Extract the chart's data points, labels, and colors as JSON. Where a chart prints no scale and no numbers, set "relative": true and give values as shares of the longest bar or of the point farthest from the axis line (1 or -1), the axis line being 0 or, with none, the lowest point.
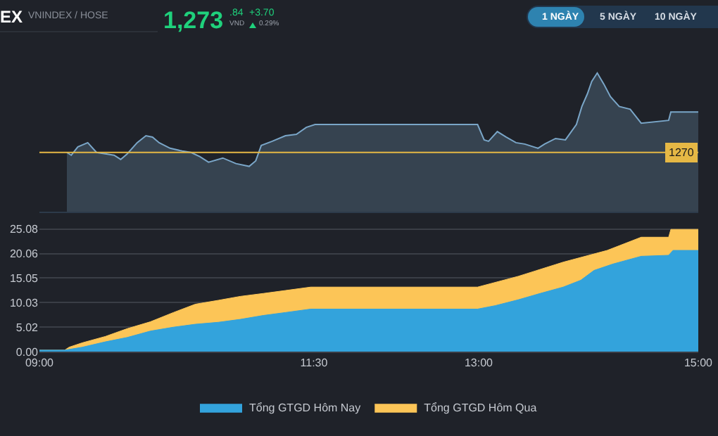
{
  "chart_data": [
    {
      "type": "other",
      "annotations": [
        "EX",
        "VNINDEX / HOSE",
        "1,273",
        ".84",
        "VND",
        "+3.70",
        "0.29%",
        "1 NGÀY",
        "5 NGÀY",
        "10 NGÀY"
      ]
    },
    {
      "type": "area",
      "relative": true,
      "xlim": [
        9,
        15
      ],
      "tick_labels": false,
      "series": [
        {
          "color": "#7aa6c8",
          "x": [
            9.25,
            9.29,
            9.35,
            9.44,
            9.52,
            9.6,
            9.68,
            9.74,
            9.8,
            9.89,
            9.97,
            10.03,
            10.09,
            10.19,
            10.3,
            10.38,
            10.46,
            10.54,
            10.67,
            10.79,
            10.91,
            10.97,
            11.02,
            11.12,
            11.24,
            11.34,
            11.43,
            11.51,
            12.99,
            13.05,
            13.09,
            13.17,
            13.25,
            13.34,
            13.42,
            13.54,
            13.6,
            13.7,
            13.79,
            13.89,
            13.94,
            13.99,
            14.03,
            14.08,
            14.14,
            14.2,
            14.28,
            14.38,
            14.48,
            14.73,
            14.75,
            15
          ],
          "values": [
            0.43,
            0.41,
            0.47,
            0.5,
            0.43,
            0.42,
            0.41,
            0.38,
            0.42,
            0.5,
            0.55,
            0.54,
            0.5,
            0.46,
            0.44,
            0.43,
            0.4,
            0.36,
            0.39,
            0.35,
            0.33,
            0.37,
            0.48,
            0.51,
            0.55,
            0.56,
            0.61,
            0.63,
            0.63,
            0.52,
            0.51,
            0.58,
            0.54,
            0.5,
            0.49,
            0.46,
            0.49,
            0.53,
            0.52,
            0.63,
            0.76,
            0.85,
            0.94,
            1,
            0.92,
            0.83,
            0.76,
            0.74,
            0.64,
            0.66,
            0.72,
            0.72
          ]
        }
      ],
      "ref_lines": [
        {
          "axis": "y",
          "value": 0.43,
          "color": "#e6b845"
        }
      ],
      "annotations": [
        "1270"
      ]
    },
    {
      "type": "area",
      "xlim": [
        9,
        15
      ],
      "xticks": [
        {
          "value": 9,
          "label": "09:00"
        },
        {
          "value": 11.5,
          "label": "11:30"
        },
        {
          "value": 13,
          "label": "13:00"
        },
        {
          "value": 15,
          "label": "15:00"
        }
      ],
      "ylim": [
        0,
        25.6
      ],
      "yticks": [
        {
          "value": 0,
          "label": "0.00"
        },
        5.02,
        10.03,
        15.05,
        20.06,
        25.08
      ],
      "grid": "y",
      "legend": "bottom",
      "series": [
        {
          "name": "Tổng GTGD Hôm Nay",
          "color": "#33a3dc",
          "x": [
            9,
            9.23,
            9.39,
            9.6,
            9.8,
            10.01,
            10.22,
            10.42,
            10.63,
            10.83,
            11.04,
            11.24,
            11.47,
            12.99,
            13.15,
            13.36,
            13.56,
            13.77,
            13.93,
            14.05,
            14.22,
            14.48,
            14.73,
            14.77,
            15
          ],
          "values": [
            0.3,
            0.3,
            0.9,
            2,
            2.9,
            4.2,
            5,
            5.6,
            6,
            6.6,
            7.4,
            8,
            8.7,
            8.7,
            9.4,
            10.6,
            11.9,
            13.2,
            14.6,
            16.6,
            17.9,
            19.5,
            19.7,
            20.7,
            20.7
          ]
        },
        {
          "name": "Tổng GTGD Hôm Qua",
          "color": "#fcc557",
          "x": [
            9,
            9.23,
            9.27,
            9.39,
            9.6,
            9.8,
            10.01,
            10.22,
            10.42,
            10.63,
            10.83,
            11.04,
            11.24,
            11.47,
            12.99,
            13.36,
            13.77,
            14.17,
            14.48,
            14.73,
            14.75,
            15
          ],
          "values": [
            0.3,
            0.3,
            0.9,
            1.8,
            3.1,
            4.7,
            6.1,
            8,
            9.7,
            10.5,
            11.3,
            11.9,
            12.5,
            13.2,
            13.2,
            15.4,
            18.3,
            20.7,
            23.4,
            23.4,
            25,
            25
          ]
        }
      ]
    }
  ]
}
